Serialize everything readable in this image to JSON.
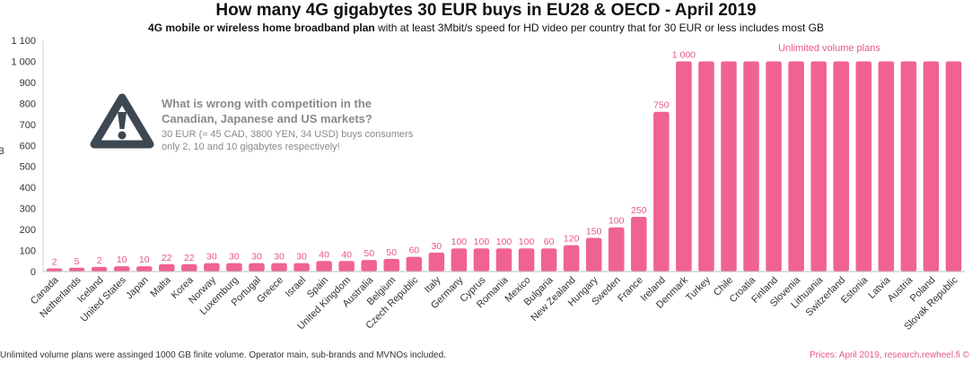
{
  "title": "How many 4G gigabytes 30 EUR buys in EU28 & OECD - April 2019",
  "subtitle_bold": "4G mobile or wireless home broadband plan",
  "subtitle_rest": " with at least 3Mbit/s speed for HD video per country that for 30 EUR or less includes most GB",
  "callout": {
    "heading_line1": "What is wrong with competition in the",
    "heading_line2": "Canadian, Japanese and US markets?",
    "body_line1": "30 EUR (≈ 45 CAD, 3800 YEN, 34 USD) buys consumers",
    "body_line2": "only 2, 10 and 10 gigabytes respectively!",
    "icon": "warning-triangle-icon"
  },
  "footnote": "Unlimited volume plans were assinged 1000 GB finite volume. Operator main, sub-brands and MVNOs included.",
  "source": "Prices: April 2019, research.rewheel.fi ©",
  "colors": {
    "bar": "#f06292",
    "label": "#e8558f",
    "axis": "#555555",
    "icon": "#3d4852",
    "callout_text": "#8a8a8a"
  },
  "chart_data": {
    "type": "bar",
    "title": "How many 4G gigabytes 30 EUR buys in EU28 & OECD - April 2019",
    "ylabel": "GB",
    "ylim": [
      0,
      1100
    ],
    "yticks": [
      "0",
      "100",
      "200",
      "300",
      "400",
      "500",
      "600",
      "700",
      "800",
      "900",
      "1 000",
      "1 100"
    ],
    "annotation": "Unlimited volume plans",
    "categories": [
      "Canada",
      "Netherlands",
      "Iceland",
      "United States",
      "Japan",
      "Malta",
      "Korea",
      "Norway",
      "Luxemburg",
      "Portugal",
      "Greece",
      "Israel",
      "Spain",
      "United Kingdom",
      "Australia",
      "Belgium",
      "Czech Republic",
      "Italy",
      "Germany",
      "Cyprus",
      "Romania",
      "Mexico",
      "Bulgaria",
      "New Zealand",
      "Hungary",
      "Sweden",
      "France",
      "Ireland",
      "Denmark",
      "Turkey",
      "Chile",
      "Croatia",
      "Finland",
      "Slovenia",
      "Lithuania",
      "Switzerland",
      "Estonia",
      "Latvia",
      "Austria",
      "Poland",
      "Slovak Republic"
    ],
    "values": [
      2,
      5,
      2,
      10,
      10,
      22,
      22,
      30,
      30,
      30,
      30,
      30,
      40,
      40,
      50,
      50,
      60,
      30,
      100,
      100,
      100,
      100,
      60,
      120,
      150,
      100,
      250,
      750,
      1000,
      1000,
      1000,
      1000,
      1000,
      1000,
      1000,
      1000,
      1000,
      1000,
      1000,
      1000,
      1000
    ],
    "bar_height_values": [
      15,
      18,
      22,
      25,
      25,
      35,
      35,
      40,
      40,
      40,
      40,
      40,
      50,
      50,
      55,
      60,
      70,
      90,
      110,
      110,
      110,
      110,
      110,
      125,
      160,
      210,
      260,
      760,
      1000,
      1000,
      1000,
      1000,
      1000,
      1000,
      1000,
      1000,
      1000,
      1000,
      1000,
      1000,
      1000
    ],
    "data_labels": [
      "2",
      "5",
      "2",
      "10",
      "10",
      "22",
      "22",
      "30",
      "30",
      "30",
      "30",
      "30",
      "40",
      "40",
      "50",
      "50",
      "60",
      "30",
      "100",
      "100",
      "100",
      "100",
      "60",
      "120",
      "150",
      "100",
      "250",
      "750",
      "1 000",
      "",
      "",
      "",
      "",
      "",
      "",
      "",
      "",
      "",
      "",
      "",
      ""
    ]
  }
}
